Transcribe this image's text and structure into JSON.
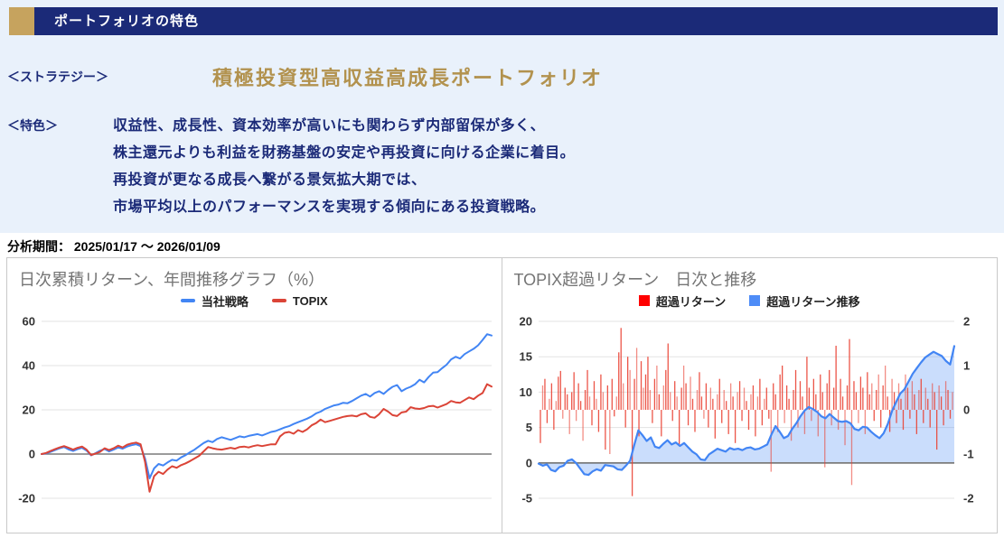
{
  "header": {
    "title": "ポートフォリオの特色",
    "bar_color": "#1b2a78",
    "accent_color": "#c6a35e"
  },
  "strategy": {
    "label": "＜ストラテジー＞",
    "title": "積極投資型高収益高成長ポートフォリオ",
    "title_color": "#b2924e"
  },
  "features": {
    "label": "＜特色＞",
    "lines": [
      "収益性、成長性、資本効率が高いにも関わらず内部留保が多く、",
      "株主還元よりも利益を財務基盤の安定や再投資に向ける企業に着目。",
      "再投資が更なる成長へ繋がる景気拡大期では、",
      "市場平均以上のパフォーマンスを実現する傾向にある投資戦略。"
    ]
  },
  "analysis_period": {
    "label": "分析期間：",
    "value": "2025/01/17 ～ 2026/01/09"
  },
  "chart_data": [
    {
      "type": "line",
      "title": "日次累積リターン、年間推移グラフ（%）",
      "xlabel": "",
      "ylabel": "",
      "x_axis_labels": "none",
      "ylim": [
        -20,
        60
      ],
      "yticks": [
        60,
        40,
        20,
        0,
        -20
      ],
      "grid": true,
      "legend_position": "top",
      "legend": [
        {
          "label": "当社戦略",
          "color": "#4285f4",
          "marker": "line"
        },
        {
          "label": "TOPIX",
          "color": "#db4437",
          "marker": "line"
        }
      ],
      "series": [
        {
          "name": "当社戦略",
          "color": "#4285f4",
          "values": [
            0,
            0.3,
            1,
            1.8,
            2.6,
            3.2,
            2.1,
            1.4,
            2.2,
            2.8,
            1.6,
            -0.6,
            0.4,
            1.5,
            2.3,
            1.2,
            2,
            3,
            2.4,
            3.4,
            4,
            4.4,
            3.6,
            -2,
            -11,
            -6.5,
            -4.5,
            -5.2,
            -3.8,
            -2.6,
            -3,
            -1.5,
            -0.5,
            0.8,
            2,
            3.5,
            5,
            6,
            5.4,
            6.8,
            7.6,
            7,
            6.4,
            7.2,
            8,
            7.6,
            8.2,
            8.6,
            9,
            8.4,
            9.2,
            10,
            10.4,
            11.2,
            12,
            12.6,
            13.6,
            14.4,
            15.2,
            16,
            17,
            18.4,
            19.2,
            20.4,
            21.2,
            22,
            22.4,
            23.2,
            23,
            24,
            25.2,
            26.4,
            27.2,
            26,
            27.6,
            28.4,
            27.2,
            29,
            30.4,
            31.2,
            28.4,
            29.6,
            30.4,
            31.6,
            33.6,
            32.4,
            34.8,
            36.8,
            37,
            38.8,
            40.4,
            42.8,
            44,
            43.2,
            45.2,
            46.4,
            47.6,
            49.2,
            51.6,
            54.2,
            53.6
          ]
        },
        {
          "name": "TOPIX",
          "color": "#db4437",
          "values": [
            0,
            0.5,
            1.4,
            2.2,
            3,
            3.6,
            2.8,
            2,
            2.8,
            3.4,
            2,
            -0.4,
            0.2,
            1,
            2.6,
            1.8,
            2.6,
            3.8,
            3,
            4.2,
            4.8,
            5.2,
            4.4,
            -3.5,
            -17,
            -10,
            -8,
            -9,
            -7,
            -5.5,
            -6.2,
            -5,
            -4.2,
            -3.2,
            -2,
            -0.8,
            1.2,
            3.2,
            2.6,
            2.2,
            2,
            2.4,
            2.8,
            2.4,
            3.2,
            3.4,
            3,
            3.6,
            4,
            3.6,
            4,
            4.4,
            4.4,
            8,
            9.6,
            10,
            9.2,
            10.8,
            10,
            11.2,
            13,
            14,
            15.6,
            14.4,
            15,
            15.6,
            16.2,
            16.8,
            17.2,
            17.4,
            17,
            18,
            18.4,
            16.8,
            16.4,
            18,
            20.4,
            19.2,
            17.6,
            17.2,
            18.8,
            19.2,
            21.2,
            20.6,
            20.4,
            20.8,
            21.6,
            21.8,
            21,
            21.8,
            22.6,
            24,
            23.4,
            23.2,
            24.4,
            25.6,
            24.8,
            26.4,
            27.6,
            31.6,
            30.5
          ]
        }
      ]
    },
    {
      "type": "combo",
      "title": "TOPIX超過リターン　日次と推移",
      "xlabel": "",
      "x_axis_labels": "none",
      "grid": true,
      "left_ylim": [
        -5,
        20
      ],
      "left_yticks": [
        20,
        15,
        10,
        5,
        0,
        -5
      ],
      "right_ylim": [
        -2,
        2
      ],
      "right_yticks": [
        2,
        1,
        0,
        -1,
        -2
      ],
      "legend_position": "top",
      "legend": [
        {
          "label": "超過リターン",
          "color": "#ff0000",
          "marker": "square"
        },
        {
          "label": "超過リターン推移",
          "color": "#4e8cf7",
          "marker": "square"
        }
      ],
      "bars": {
        "name": "超過リターン",
        "axis": "right",
        "color": "#ea4335",
        "values": [
          -0.75,
          0.55,
          0.7,
          -0.3,
          0.25,
          0.6,
          -0.45,
          0.2,
          0.75,
          0.88,
          -0.2,
          0.5,
          0.35,
          -0.55,
          0.4,
          0.85,
          -0.25,
          0.6,
          0.2,
          -0.7,
          0.45,
          0.9,
          0.3,
          -0.35,
          0.65,
          0.25,
          -0.5,
          0.8,
          0.4,
          -0.9,
          0.55,
          -1,
          0.7,
          -0.15,
          0.3,
          1.3,
          1.85,
          0.6,
          -0.4,
          1.2,
          0.9,
          -1.95,
          0.7,
          1.4,
          -0.6,
          1.1,
          0.5,
          0.8,
          1.2,
          0.45,
          -0.3,
          0.7,
          1,
          0.35,
          -0.6,
          0.55,
          0.9,
          1.5,
          0.4,
          -0.25,
          0.65,
          0.3,
          -0.8,
          0.5,
          1,
          0.6,
          -0.35,
          0.75,
          0.25,
          -0.5,
          0.45,
          0.85,
          0.3,
          -0.2,
          0.6,
          -0.4,
          0.5,
          0.25,
          -0.65,
          0.35,
          0.7,
          -0.3,
          0.45,
          0.2,
          -0.55,
          0.6,
          0.3,
          -0.75,
          0.4,
          0.65,
          -0.25,
          0.5,
          0.2,
          -0.45,
          0.35,
          0.55,
          -0.6,
          0.3,
          0.7,
          -0.35,
          0.25,
          0.5,
          -0.2,
          -1.4,
          0.6,
          0.35,
          -0.5,
          0.8,
          1,
          -0.3,
          0.55,
          0.25,
          -0.7,
          0.45,
          0.9,
          -0.4,
          0.65,
          0.3,
          -0.55,
          1.2,
          0.5,
          -0.25,
          0.7,
          0.35,
          -0.6,
          0.8,
          0.4,
          -1.3,
          0.6,
          0.9,
          -0.35,
          0.5,
          1.45,
          -0.45,
          0.7,
          0.3,
          -0.8,
          0.55,
          1.6,
          -1.7,
          0.65,
          0.4,
          -0.3,
          0.75,
          0.5,
          -0.55,
          0.85,
          0.35,
          0.6,
          -0.25,
          0.45,
          0.8,
          -0.4,
          0.55,
          1,
          0.3,
          -0.5,
          0.7,
          0.4,
          -0.3,
          0.6,
          0.25,
          -0.45,
          0.8,
          0.5,
          -0.2,
          0.65,
          0.35,
          -0.55,
          0.45,
          0.7,
          -0.3,
          0.5,
          0.25,
          -0.4,
          0.6,
          0.4,
          -0.9,
          0.55,
          0.3,
          -0.35,
          0.65,
          0.45,
          -0.2,
          0.4
        ]
      },
      "area": {
        "name": "超過リターン推移",
        "axis": "left",
        "color": "#4285f4",
        "fill": "rgba(66,133,244,0.28)",
        "values": [
          -0.1,
          -0.4,
          -0.2,
          -1,
          -1.2,
          -0.6,
          -0.4,
          0.3,
          0.5,
          0,
          -0.8,
          -1.6,
          -1.7,
          -1.2,
          -0.9,
          -1.1,
          -0.3,
          -0.4,
          -0.5,
          -0.9,
          -1,
          -0.4,
          0.3,
          2.5,
          4.6,
          3.9,
          3.1,
          3.6,
          2.3,
          2.1,
          2.7,
          3.2,
          2.6,
          2.9,
          2.4,
          2.8,
          2.2,
          1.6,
          1.2,
          0.5,
          0.4,
          1.2,
          1.6,
          2,
          1.8,
          1.6,
          2.1,
          1.9,
          2,
          1.8,
          2.1,
          2.2,
          1.9,
          2,
          2.3,
          2.6,
          4,
          5.2,
          4.4,
          3.5,
          3.8,
          4.8,
          5.6,
          6.6,
          7.4,
          7.9,
          7.6,
          7.2,
          6.6,
          6.3,
          6.9,
          6.4,
          5.9,
          5.8,
          5.9,
          5.6,
          4.8,
          4.6,
          5.1,
          5,
          4.4,
          3.9,
          3.5,
          4.2,
          5.5,
          7.3,
          8.6,
          9.8,
          10.4,
          11.5,
          12.6,
          13.4,
          14.2,
          14.9,
          15.3,
          15.7,
          15.4,
          15.1,
          14.4,
          13.9,
          16.5
        ]
      }
    }
  ]
}
